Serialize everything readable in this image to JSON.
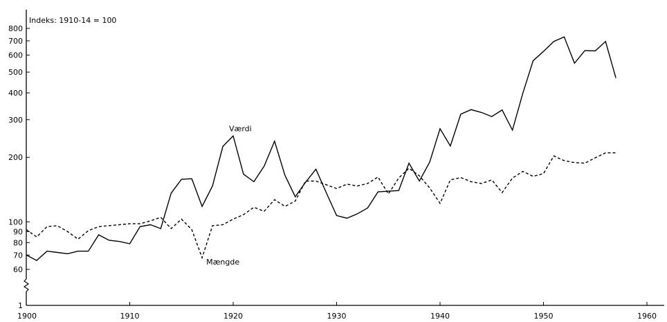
{
  "chart_data": {
    "type": "line",
    "title": "Indeks: 1910-14 = 100",
    "xlabel": "",
    "ylabel": "",
    "y_scale": "log",
    "y_axis_break": true,
    "xlim": [
      1900,
      1962
    ],
    "ylim": [
      60,
      800
    ],
    "x_ticks": [
      1900,
      1910,
      1920,
      1930,
      1940,
      1950,
      1960
    ],
    "y_ticks": [
      60,
      70,
      80,
      90,
      100,
      200,
      300,
      400,
      500,
      600,
      700,
      800
    ],
    "y_break_label": "1",
    "grid": false,
    "colors": {
      "line": "#000000",
      "text": "#000000"
    },
    "series": [
      {
        "name": "Værdi",
        "style": "solid",
        "x": [
          1900,
          1901,
          1902,
          1903,
          1904,
          1905,
          1906,
          1907,
          1908,
          1909,
          1910,
          1911,
          1912,
          1913,
          1914,
          1915,
          1916,
          1917,
          1918,
          1919,
          1920,
          1921,
          1922,
          1923,
          1924,
          1925,
          1926,
          1927,
          1928,
          1929,
          1930,
          1931,
          1932,
          1933,
          1934,
          1935,
          1936,
          1937,
          1938,
          1939,
          1940,
          1941,
          1942,
          1943,
          1944,
          1945,
          1946,
          1947,
          1948,
          1949,
          1950,
          1951,
          1952,
          1953,
          1954,
          1955,
          1956,
          1957
        ],
        "values": [
          70,
          66,
          73,
          72,
          71,
          73,
          73,
          87,
          82,
          81,
          79,
          95,
          97,
          93,
          136,
          158,
          159,
          118,
          147,
          225,
          252,
          167,
          154,
          182,
          238,
          165,
          131,
          153,
          176,
          137,
          107,
          104,
          109,
          116,
          138,
          139,
          140,
          188,
          155,
          190,
          272,
          226,
          318,
          334,
          324,
          310,
          333,
          268,
          398,
          565,
          625,
          695,
          730,
          550,
          630,
          628,
          695,
          470
        ]
      },
      {
        "name": "Mængde",
        "style": "dashed",
        "x": [
          1900,
          1901,
          1902,
          1903,
          1904,
          1905,
          1906,
          1907,
          1908,
          1909,
          1910,
          1911,
          1912,
          1913,
          1914,
          1915,
          1916,
          1917,
          1918,
          1919,
          1920,
          1921,
          1922,
          1923,
          1924,
          1925,
          1926,
          1927,
          1928,
          1929,
          1930,
          1931,
          1932,
          1933,
          1934,
          1935,
          1936,
          1937,
          1938,
          1939,
          1940,
          1941,
          1942,
          1943,
          1944,
          1945,
          1946,
          1947,
          1948,
          1949,
          1950,
          1951,
          1952,
          1953,
          1954,
          1955,
          1956,
          1957
        ],
        "values": [
          92,
          85,
          95,
          96,
          90,
          83,
          91,
          95,
          96,
          97,
          98,
          98,
          101,
          105,
          93,
          103,
          92,
          68,
          96,
          97,
          103,
          108,
          117,
          112,
          127,
          118,
          125,
          155,
          155,
          149,
          143,
          150,
          147,
          151,
          162,
          135,
          160,
          178,
          164,
          144,
          122,
          157,
          161,
          154,
          151,
          157,
          137,
          160,
          172,
          163,
          168,
          203,
          193,
          189,
          188,
          199,
          210,
          210
        ]
      }
    ],
    "annotations": [
      {
        "text": "Værdi",
        "series": "Værdi",
        "x": 1920,
        "y": 265
      },
      {
        "text": "Mængde",
        "series": "Mængde",
        "x": 1917,
        "y": 66
      }
    ]
  }
}
